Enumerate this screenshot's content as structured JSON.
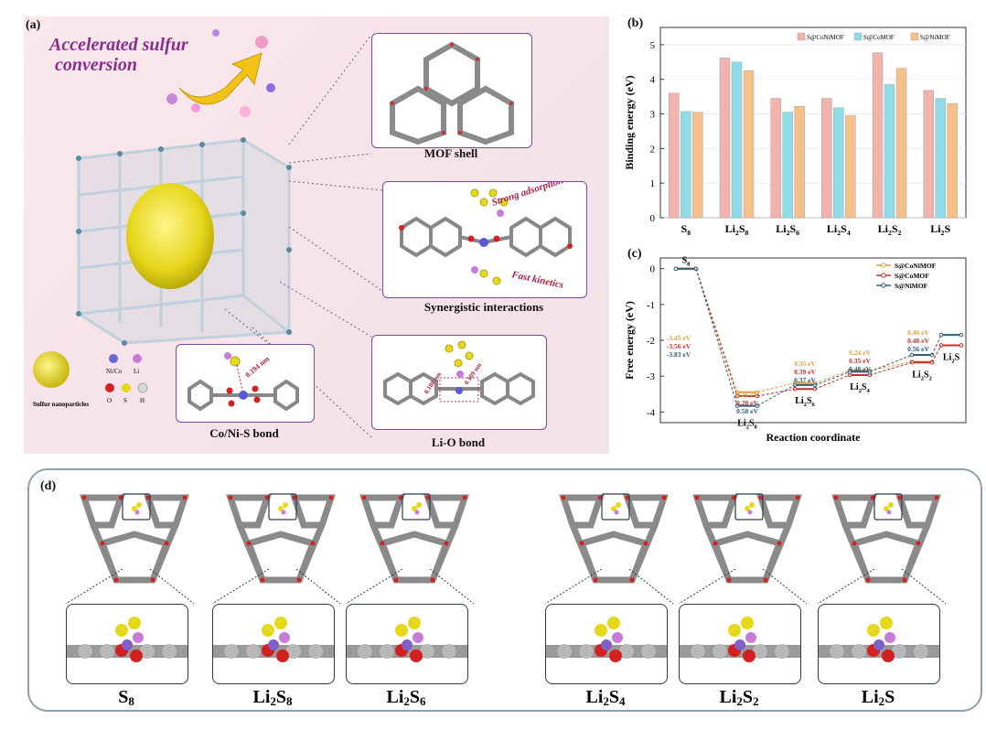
{
  "panel_labels": {
    "a": "(a)",
    "b": "(b)",
    "c": "(c)",
    "d": "(d)"
  },
  "panel_a": {
    "headline_line1": "Accelerated sulfur",
    "headline_line2": "conversion",
    "captions": {
      "mof_shell": "MOF shell",
      "synergistic": "Synergistic interactions",
      "co_ni_s": "Co/Ni-S bond",
      "li_o": "Li-O bond"
    },
    "annotations": {
      "strong_adsorption": "Strong adsorption",
      "fast_kinetics": "Fast kinetics",
      "bond_0194": "0.194 nm",
      "bond_a": "0.188 nm",
      "bond_b": "0.189 nm"
    },
    "legend": {
      "sulfur_np": "Sulfur nanoparticles",
      "ni_co": "Ni/Co",
      "li": "Li",
      "o": "O",
      "s": "S",
      "h": "H"
    },
    "colors": {
      "ni_co": "#6a6ad6",
      "li": "#c97bd8",
      "o": "#d32020",
      "s": "#e6d81a",
      "h": "#d8d8d8"
    }
  },
  "chart_data": [
    {
      "type": "bar",
      "panel": "b",
      "categories": [
        "S8",
        "Li2S8",
        "Li2S6",
        "Li2S4",
        "Li2S2",
        "Li2S"
      ],
      "category_labels": [
        {
          "base": "S",
          "sub": "8",
          "post": ""
        },
        {
          "base": "Li",
          "sub": "2",
          "post": "S",
          "sub2": "8"
        },
        {
          "base": "Li",
          "sub": "2",
          "post": "S",
          "sub2": "6"
        },
        {
          "base": "Li",
          "sub": "2",
          "post": "S",
          "sub2": "4"
        },
        {
          "base": "Li",
          "sub": "2",
          "post": "S",
          "sub2": "2"
        },
        {
          "base": "Li",
          "sub": "2",
          "post": "S",
          "sub2": ""
        }
      ],
      "series": [
        {
          "name": "S@CoNiMOF",
          "values": [
            3.6,
            4.62,
            3.45,
            3.45,
            4.77,
            3.68
          ],
          "color": "#f2b2ad"
        },
        {
          "name": "S@CoMOF",
          "values": [
            3.07,
            4.5,
            3.05,
            3.18,
            3.85,
            3.45
          ],
          "color": "#8fdce8"
        },
        {
          "name": "S@NiMOF",
          "values": [
            3.05,
            4.25,
            3.22,
            2.95,
            4.32,
            3.3
          ],
          "color": "#f5c08a"
        }
      ],
      "ylabel": "Binding energy (eV)",
      "ylim": [
        0,
        5.5
      ],
      "yticks": [
        0,
        1,
        2,
        3,
        4,
        5
      ],
      "legend_position": "top-right"
    },
    {
      "type": "line",
      "panel": "c",
      "xlabel": "Reaction coordinate",
      "ylabel": "Free energy (eV)",
      "ylim": [
        -4.3,
        0.3
      ],
      "yticks": [
        0,
        -1,
        -2,
        -3,
        -4
      ],
      "species": [
        "S8",
        "Li2S8",
        "Li2S6",
        "Li2S4",
        "Li2S2",
        "Li2S"
      ],
      "series": [
        {
          "name": "S@CoNiMOF",
          "color": "#e0a040",
          "values": [
            0,
            -3.45,
            -3.19,
            -2.84,
            -2.6,
            -2.14
          ]
        },
        {
          "name": "S@CoMOF",
          "color": "#c03030",
          "values": [
            0,
            -3.56,
            -3.36,
            -2.97,
            -2.62,
            -2.14
          ]
        },
        {
          "name": "S@NiMOF",
          "color": "#2f5d78",
          "values": [
            0,
            -3.83,
            -3.25,
            -2.88,
            -2.41,
            -1.85
          ]
        }
      ],
      "step_labels": [
        [
          "-3.45 eV",
          "-3.56 eV",
          "-3.83 eV"
        ],
        [
          "0.26 eV",
          "0.20 eV",
          "0.58 eV"
        ],
        [
          "0.35 eV",
          "0.39 eV",
          "0.37 eV"
        ],
        [
          "0.24 eV",
          "0.35 eV",
          "0.48 eV"
        ],
        [
          "0.46 eV",
          "0.48 eV",
          "0.56 eV"
        ]
      ],
      "legend_position": "top-right"
    }
  ],
  "panel_d": {
    "labels": [
      "S8",
      "Li2S8",
      "Li2S6",
      "Li2S4",
      "Li2S2",
      "Li2S"
    ]
  }
}
